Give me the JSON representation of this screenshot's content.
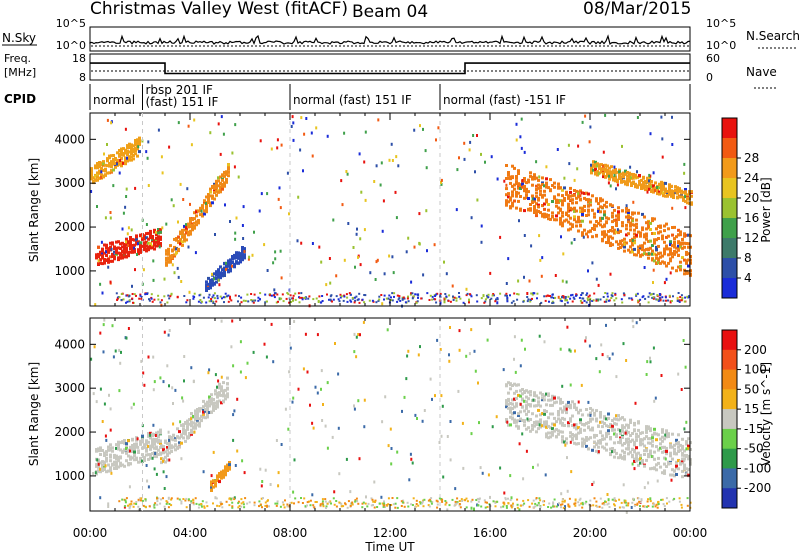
{
  "header": {
    "title": "Christmas Valley West (fitACF)",
    "beam": "Beam 04",
    "date": "08/Mar/2015"
  },
  "top_panels": {
    "nsky_label": "N.Sky",
    "nsky_ticks": [
      "10^5",
      "10^0"
    ],
    "nsearch_label": "N.Search",
    "nsearch_ticks": [
      "10^5",
      "10^0"
    ],
    "freq_label_1": "Freq.",
    "freq_label_2": "[MHz]",
    "freq_ticks": [
      "18",
      "8"
    ],
    "nave_label": "Nave",
    "nave_ticks": [
      "60",
      "0"
    ],
    "cpid_label": "CPID",
    "cpid_segments": [
      {
        "start": 0,
        "end": 2.1,
        "label": "normal"
      },
      {
        "start": 2.1,
        "end": 8.0,
        "label": "rbsp 201 IF",
        "label2": "(fast) 151 IF"
      },
      {
        "start": 8.0,
        "end": 14.0,
        "label": "normal (fast) 151 IF"
      },
      {
        "start": 14.0,
        "end": 24.0,
        "label": "normal (fast) -151 IF"
      }
    ],
    "freq_steps": [
      {
        "x0": 0,
        "x1": 3.0,
        "mhz": 14.5
      },
      {
        "x0": 3.0,
        "x1": 15.0,
        "mhz": 10.5
      },
      {
        "x0": 15.0,
        "x1": 24.0,
        "mhz": 14.5
      }
    ]
  },
  "chart_data": [
    {
      "type": "heatmap",
      "name": "power",
      "ylabel": "Slant Range [km]",
      "xlabel": "Time UT",
      "xlim": [
        0,
        24
      ],
      "ylim": [
        200,
        4600
      ],
      "x_ticks": [
        "00:00",
        "04:00",
        "08:00",
        "12:00",
        "16:00",
        "20:00",
        "00:00"
      ],
      "y_ticks": [
        1000,
        2000,
        3000,
        4000
      ],
      "colorbar": {
        "label": "Power [dB]",
        "ticks": [
          "4",
          "8",
          "12",
          "16",
          "20",
          "24",
          "28"
        ],
        "colors": [
          "#1a2cd8",
          "#2d4fa8",
          "#3d7a6a",
          "#3fa04a",
          "#9ac230",
          "#e8c420",
          "#f29a1a",
          "#f25a12",
          "#e8120e"
        ]
      },
      "regions": [
        {
          "t0": 0.2,
          "t1": 2.8,
          "r0": 1350,
          "r1": 1800,
          "dr": 220,
          "c": "#e8220e"
        },
        {
          "t0": 0.0,
          "t1": 2.0,
          "r0": 3200,
          "r1": 3900,
          "dr": 200,
          "c": "#f0a018"
        },
        {
          "t0": 3.0,
          "t1": 5.5,
          "r0": 1300,
          "r1": 3300,
          "dr": 200,
          "c": "#f08a18"
        },
        {
          "t0": 4.6,
          "t1": 6.2,
          "r0": 700,
          "r1": 1500,
          "dr": 150,
          "c": "#2a4bb8"
        },
        {
          "t0": 16.6,
          "t1": 24.0,
          "r0": 3000,
          "r1": 1400,
          "dr": 500,
          "c": "#f07a14"
        },
        {
          "t0": 20.0,
          "t1": 24.0,
          "r0": 3400,
          "r1": 2700,
          "dr": 150,
          "c": "#f09a1a"
        }
      ]
    },
    {
      "type": "heatmap",
      "name": "velocity",
      "ylabel": "Slant Range [km]",
      "xlabel": "Time UT",
      "xlim": [
        0,
        24
      ],
      "ylim": [
        200,
        4600
      ],
      "x_ticks": [
        "00:00",
        "04:00",
        "08:00",
        "12:00",
        "16:00",
        "20:00",
        "00:00"
      ],
      "y_ticks": [
        1000,
        2000,
        3000,
        4000
      ],
      "colorbar": {
        "label": "Velocity [m s^-1]",
        "ticks": [
          "200",
          "100",
          "50",
          "15",
          "-15",
          "-50",
          "-100",
          "-200"
        ],
        "colors": [
          "#2233b0",
          "#3b6aa8",
          "#2e9a4a",
          "#6bd04a",
          "#c8c8c0",
          "#f2b21a",
          "#f28a14",
          "#f2501a",
          "#e81010"
        ]
      },
      "regions": [
        {
          "t0": 0.2,
          "t1": 2.8,
          "r0": 1350,
          "r1": 1800,
          "dr": 300,
          "c": "#c8c8c0"
        },
        {
          "t0": 2.8,
          "t1": 5.5,
          "r0": 1500,
          "r1": 3100,
          "dr": 250,
          "c": "#c8c8c0"
        },
        {
          "t0": 16.6,
          "t1": 24.0,
          "r0": 2700,
          "r1": 1400,
          "dr": 500,
          "c": "#c8c8c0"
        },
        {
          "t0": 4.8,
          "t1": 5.6,
          "r0": 800,
          "r1": 1300,
          "dr": 100,
          "c": "#f29a1a"
        }
      ]
    }
  ]
}
